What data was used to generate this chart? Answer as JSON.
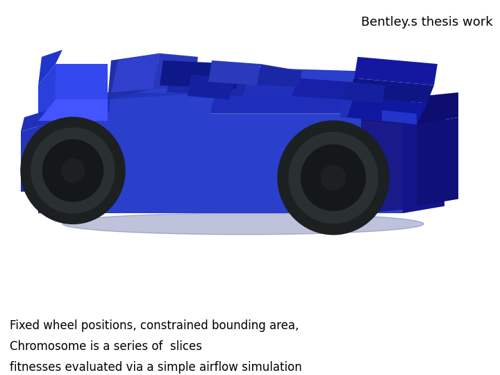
{
  "white_below": "#FFFFFF",
  "title_text": "Bentley.s thesis work",
  "title_fontsize": 13,
  "caption_lines": [
    "Fixed wheel positions, constrained bounding area,",
    "Chromosome is a series of  slices",
    "fitnesses evaluated via a simple airflow simulation"
  ],
  "caption_fontsize": 12,
  "caption_color": "#000000",
  "cyan_bg": "#45C0D2",
  "car_blue": "#2233CC",
  "car_blue_bright": "#3344EE",
  "car_blue_mid": "#1A28BB",
  "car_blue_dark": "#1015A0",
  "car_blue_darker": "#0D1088",
  "car_blue_purple": "#1A1080",
  "car_blue_side": "#1A28AA",
  "wheel_dark": "#1C2020",
  "wheel_mid": "#2A3030",
  "wheel_inner": "#151818"
}
